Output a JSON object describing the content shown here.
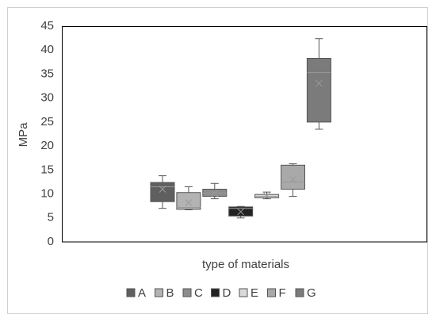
{
  "chart_data": {
    "type": "box",
    "x_label": "type of materials",
    "y_label": "MPa",
    "ylim": [
      0,
      45
    ],
    "yticks": [
      0,
      5,
      10,
      15,
      20,
      25,
      30,
      35,
      40,
      45
    ],
    "grid": false,
    "legend": "bottom",
    "series": [
      {
        "name": "A",
        "color": "#5f5f5f",
        "min": 7,
        "q1": 8.4,
        "median": 11.5,
        "q3": 12.4,
        "max": 13.8,
        "mean": 11
      },
      {
        "name": "B",
        "color": "#b3b3b3",
        "min": 6.7,
        "q1": 6.8,
        "median": 7.2,
        "q3": 10.3,
        "max": 11.5,
        "mean": 8.2
      },
      {
        "name": "C",
        "color": "#8c8c8c",
        "min": 9,
        "q1": 9.5,
        "median": 10.2,
        "q3": 11,
        "max": 12.2,
        "mean": 10.1
      },
      {
        "name": "D",
        "color": "#222222",
        "min": 5,
        "q1": 5.4,
        "median": 7,
        "q3": 7.3,
        "max": 7.4,
        "mean": 6.3
      },
      {
        "name": "E",
        "color": "#d9d9d9",
        "min": 9,
        "q1": 9.2,
        "median": 9.5,
        "q3": 9.9,
        "max": 10.4,
        "mean": 9.6
      },
      {
        "name": "F",
        "color": "#a9a9a9",
        "min": 9.5,
        "q1": 11,
        "median": 12.5,
        "q3": 16,
        "max": 16.3,
        "mean": 13
      },
      {
        "name": "G",
        "color": "#7b7b7b",
        "min": 23.5,
        "q1": 25,
        "median": 35.3,
        "q3": 38.3,
        "max": 42.4,
        "mean": 33.1
      }
    ]
  }
}
